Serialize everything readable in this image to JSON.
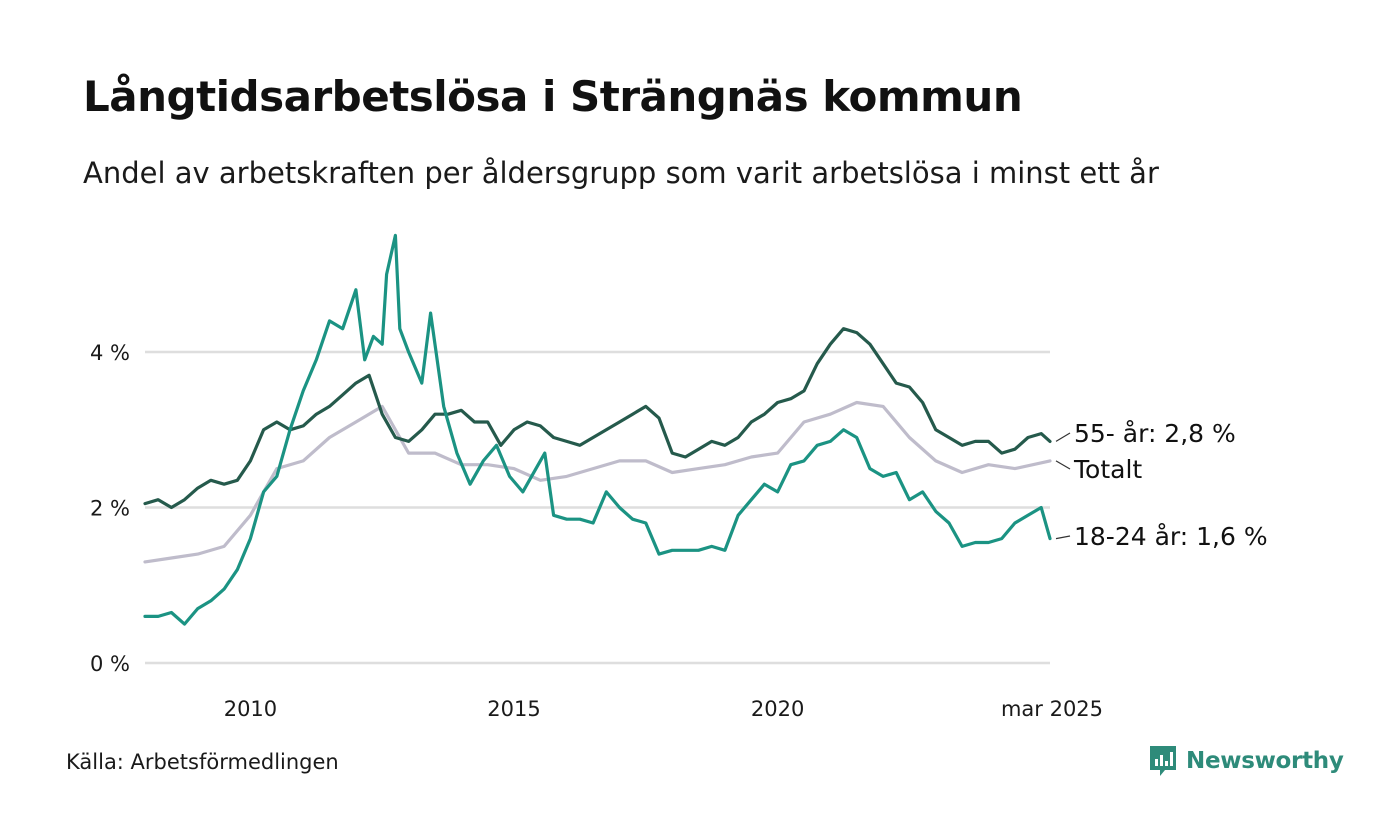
{
  "header": {
    "title": "Långtidsarbetslösa i Strängnäs kommun",
    "subtitle": "Andel av arbetskraften per åldersgrupp som varit arbetslösa i minst ett år"
  },
  "footer": {
    "source": "Källa: Arbetsförmedlingen",
    "brand": "Newsworthy",
    "brand_icon": "bar-chart-badge-icon",
    "brand_color": "#2e8b7a"
  },
  "chart_data": {
    "type": "line",
    "title": "Långtidsarbetslösa i Strängnäs kommun",
    "subtitle": "Andel av arbetskraften per åldersgrupp som varit arbetslösa i minst ett år",
    "ylim": [
      0,
      5.5
    ],
    "xlim": [
      "2008-01",
      "2025-03"
    ],
    "yticks": [
      {
        "value": 0,
        "label": "0 %"
      },
      {
        "value": 2,
        "label": "2 %"
      },
      {
        "value": 4,
        "label": "4 %"
      }
    ],
    "xticks": [
      {
        "date": "2010-01",
        "label": "2010"
      },
      {
        "date": "2015-01",
        "label": "2015"
      },
      {
        "date": "2020-01",
        "label": "2020"
      },
      {
        "date": "2025-03",
        "label": "mar 2025"
      }
    ],
    "grid": true,
    "legend": "direct-labels-right",
    "series": [
      {
        "name": "Totalt",
        "label": "Totalt",
        "color": "#bfbccb",
        "points": [
          [
            "2008-01",
            1.3
          ],
          [
            "2008-07",
            1.35
          ],
          [
            "2009-01",
            1.4
          ],
          [
            "2009-07",
            1.5
          ],
          [
            "2010-01",
            1.9
          ],
          [
            "2010-07",
            2.5
          ],
          [
            "2011-01",
            2.6
          ],
          [
            "2011-07",
            2.9
          ],
          [
            "2012-01",
            3.1
          ],
          [
            "2012-07",
            3.3
          ],
          [
            "2013-01",
            2.7
          ],
          [
            "2013-07",
            2.7
          ],
          [
            "2014-01",
            2.55
          ],
          [
            "2014-07",
            2.55
          ],
          [
            "2015-01",
            2.5
          ],
          [
            "2015-07",
            2.35
          ],
          [
            "2016-01",
            2.4
          ],
          [
            "2016-07",
            2.5
          ],
          [
            "2017-01",
            2.6
          ],
          [
            "2017-07",
            2.6
          ],
          [
            "2018-01",
            2.45
          ],
          [
            "2018-07",
            2.5
          ],
          [
            "2019-01",
            2.55
          ],
          [
            "2019-07",
            2.65
          ],
          [
            "2020-01",
            2.7
          ],
          [
            "2020-07",
            3.1
          ],
          [
            "2021-01",
            3.2
          ],
          [
            "2021-07",
            3.35
          ],
          [
            "2022-01",
            3.3
          ],
          [
            "2022-07",
            2.9
          ],
          [
            "2023-01",
            2.6
          ],
          [
            "2023-07",
            2.45
          ],
          [
            "2024-01",
            2.55
          ],
          [
            "2024-07",
            2.5
          ],
          [
            "2025-03",
            2.6
          ]
        ]
      },
      {
        "name": "55- år",
        "label": "55- år: 2,8 %",
        "color": "#255a4c",
        "points": [
          [
            "2008-01",
            2.05
          ],
          [
            "2008-04",
            2.1
          ],
          [
            "2008-07",
            2.0
          ],
          [
            "2008-10",
            2.1
          ],
          [
            "2009-01",
            2.25
          ],
          [
            "2009-04",
            2.35
          ],
          [
            "2009-07",
            2.3
          ],
          [
            "2009-10",
            2.35
          ],
          [
            "2010-01",
            2.6
          ],
          [
            "2010-04",
            3.0
          ],
          [
            "2010-07",
            3.1
          ],
          [
            "2010-10",
            3.0
          ],
          [
            "2011-01",
            3.05
          ],
          [
            "2011-04",
            3.2
          ],
          [
            "2011-07",
            3.3
          ],
          [
            "2011-10",
            3.45
          ],
          [
            "2012-01",
            3.6
          ],
          [
            "2012-04",
            3.7
          ],
          [
            "2012-07",
            3.2
          ],
          [
            "2012-10",
            2.9
          ],
          [
            "2013-01",
            2.85
          ],
          [
            "2013-04",
            3.0
          ],
          [
            "2013-07",
            3.2
          ],
          [
            "2013-10",
            3.2
          ],
          [
            "2014-01",
            3.25
          ],
          [
            "2014-04",
            3.1
          ],
          [
            "2014-07",
            3.1
          ],
          [
            "2014-10",
            2.8
          ],
          [
            "2015-01",
            3.0
          ],
          [
            "2015-04",
            3.1
          ],
          [
            "2015-07",
            3.05
          ],
          [
            "2015-10",
            2.9
          ],
          [
            "2016-01",
            2.85
          ],
          [
            "2016-04",
            2.8
          ],
          [
            "2016-07",
            2.9
          ],
          [
            "2016-10",
            3.0
          ],
          [
            "2017-01",
            3.1
          ],
          [
            "2017-04",
            3.2
          ],
          [
            "2017-07",
            3.3
          ],
          [
            "2017-10",
            3.15
          ],
          [
            "2018-01",
            2.7
          ],
          [
            "2018-04",
            2.65
          ],
          [
            "2018-07",
            2.75
          ],
          [
            "2018-10",
            2.85
          ],
          [
            "2019-01",
            2.8
          ],
          [
            "2019-04",
            2.9
          ],
          [
            "2019-07",
            3.1
          ],
          [
            "2019-10",
            3.2
          ],
          [
            "2020-01",
            3.35
          ],
          [
            "2020-04",
            3.4
          ],
          [
            "2020-07",
            3.5
          ],
          [
            "2020-10",
            3.85
          ],
          [
            "2021-01",
            4.1
          ],
          [
            "2021-04",
            4.3
          ],
          [
            "2021-07",
            4.25
          ],
          [
            "2021-10",
            4.1
          ],
          [
            "2022-01",
            3.85
          ],
          [
            "2022-04",
            3.6
          ],
          [
            "2022-07",
            3.55
          ],
          [
            "2022-10",
            3.35
          ],
          [
            "2023-01",
            3.0
          ],
          [
            "2023-04",
            2.9
          ],
          [
            "2023-07",
            2.8
          ],
          [
            "2023-10",
            2.85
          ],
          [
            "2024-01",
            2.85
          ],
          [
            "2024-04",
            2.7
          ],
          [
            "2024-07",
            2.75
          ],
          [
            "2024-10",
            2.9
          ],
          [
            "2025-01",
            2.95
          ],
          [
            "2025-03",
            2.85
          ]
        ]
      },
      {
        "name": "18-24 år",
        "label": "18-24 år: 1,6 %",
        "color": "#1b9383",
        "points": [
          [
            "2008-01",
            0.6
          ],
          [
            "2008-04",
            0.6
          ],
          [
            "2008-07",
            0.65
          ],
          [
            "2008-10",
            0.5
          ],
          [
            "2009-01",
            0.7
          ],
          [
            "2009-04",
            0.8
          ],
          [
            "2009-07",
            0.95
          ],
          [
            "2009-10",
            1.2
          ],
          [
            "2010-01",
            1.6
          ],
          [
            "2010-04",
            2.2
          ],
          [
            "2010-07",
            2.4
          ],
          [
            "2010-10",
            3.0
          ],
          [
            "2011-01",
            3.5
          ],
          [
            "2011-04",
            3.9
          ],
          [
            "2011-07",
            4.4
          ],
          [
            "2011-10",
            4.3
          ],
          [
            "2012-01",
            4.8
          ],
          [
            "2012-03",
            3.9
          ],
          [
            "2012-05",
            4.2
          ],
          [
            "2012-07",
            4.1
          ],
          [
            "2012-08",
            5.0
          ],
          [
            "2012-10",
            5.5
          ],
          [
            "2012-11",
            4.3
          ],
          [
            "2013-01",
            4.0
          ],
          [
            "2013-04",
            3.6
          ],
          [
            "2013-06",
            4.5
          ],
          [
            "2013-09",
            3.3
          ],
          [
            "2013-12",
            2.7
          ],
          [
            "2014-03",
            2.3
          ],
          [
            "2014-06",
            2.6
          ],
          [
            "2014-09",
            2.8
          ],
          [
            "2014-12",
            2.4
          ],
          [
            "2015-03",
            2.2
          ],
          [
            "2015-06",
            2.5
          ],
          [
            "2015-08",
            2.7
          ],
          [
            "2015-10",
            1.9
          ],
          [
            "2016-01",
            1.85
          ],
          [
            "2016-04",
            1.85
          ],
          [
            "2016-07",
            1.8
          ],
          [
            "2016-10",
            2.2
          ],
          [
            "2017-01",
            2.0
          ],
          [
            "2017-04",
            1.85
          ],
          [
            "2017-07",
            1.8
          ],
          [
            "2017-10",
            1.4
          ],
          [
            "2018-01",
            1.45
          ],
          [
            "2018-04",
            1.45
          ],
          [
            "2018-07",
            1.45
          ],
          [
            "2018-10",
            1.5
          ],
          [
            "2019-01",
            1.45
          ],
          [
            "2019-04",
            1.9
          ],
          [
            "2019-07",
            2.1
          ],
          [
            "2019-10",
            2.3
          ],
          [
            "2020-01",
            2.2
          ],
          [
            "2020-04",
            2.55
          ],
          [
            "2020-07",
            2.6
          ],
          [
            "2020-10",
            2.8
          ],
          [
            "2021-01",
            2.85
          ],
          [
            "2021-04",
            3.0
          ],
          [
            "2021-07",
            2.9
          ],
          [
            "2021-10",
            2.5
          ],
          [
            "2022-01",
            2.4
          ],
          [
            "2022-04",
            2.45
          ],
          [
            "2022-07",
            2.1
          ],
          [
            "2022-10",
            2.2
          ],
          [
            "2023-01",
            1.95
          ],
          [
            "2023-04",
            1.8
          ],
          [
            "2023-07",
            1.5
          ],
          [
            "2023-10",
            1.55
          ],
          [
            "2024-01",
            1.55
          ],
          [
            "2024-04",
            1.6
          ],
          [
            "2024-07",
            1.8
          ],
          [
            "2024-10",
            1.9
          ],
          [
            "2025-01",
            2.0
          ],
          [
            "2025-03",
            1.6
          ]
        ]
      }
    ]
  }
}
